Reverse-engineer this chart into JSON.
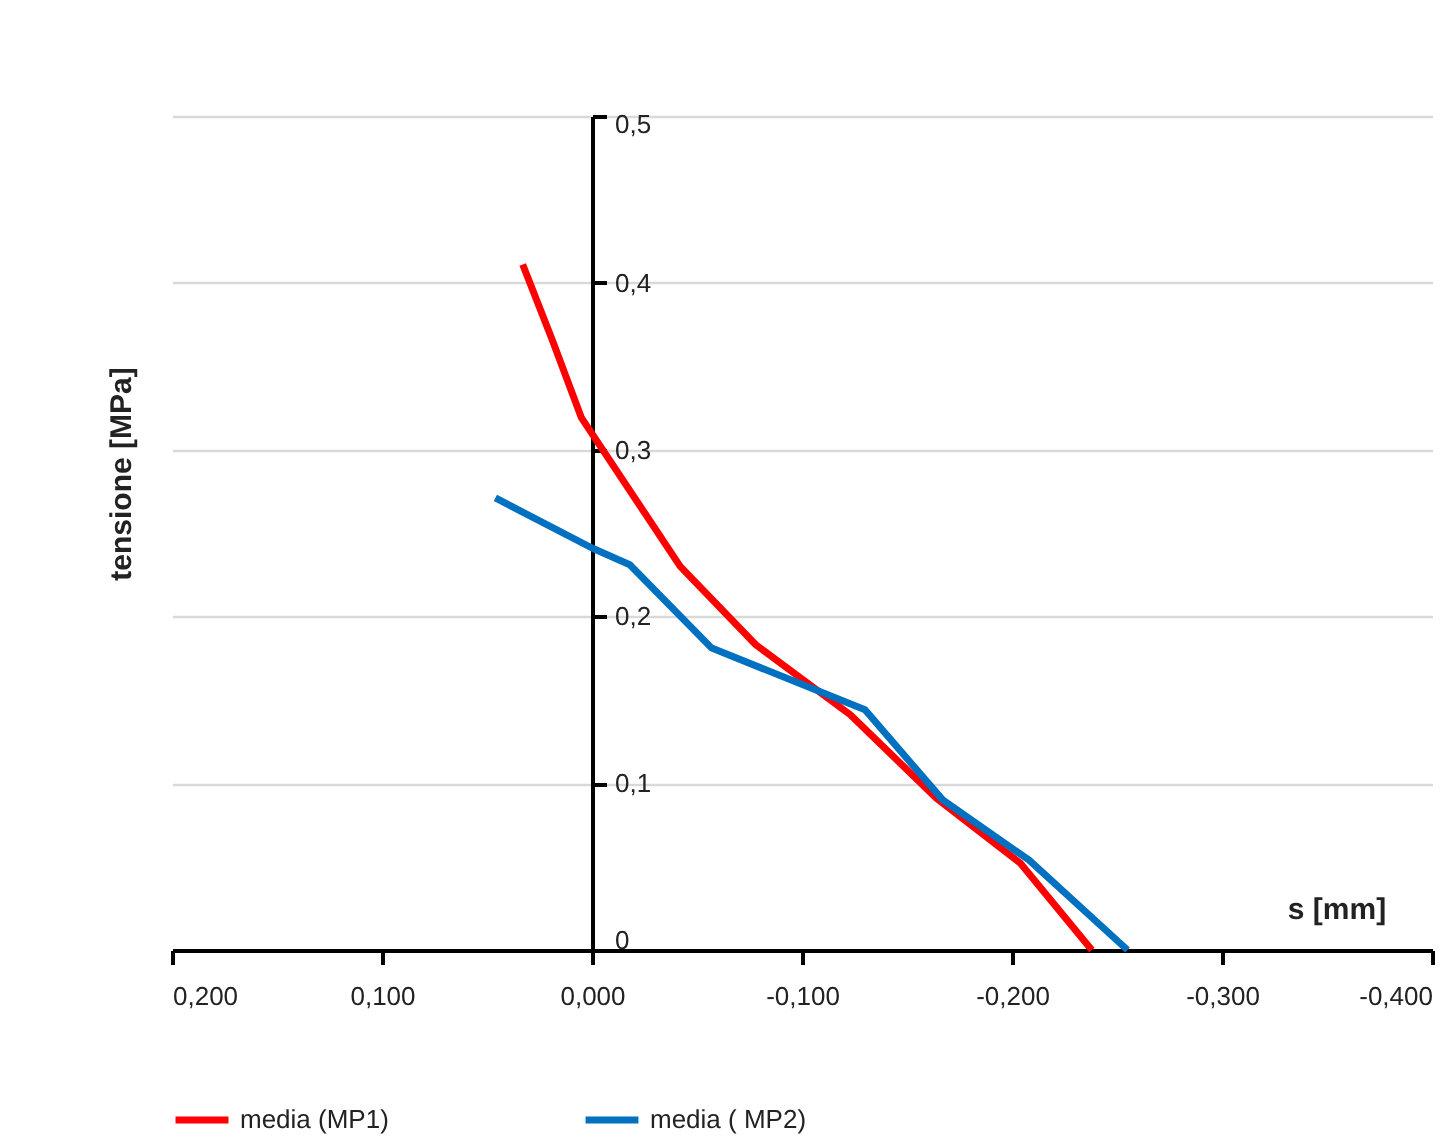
{
  "chart_data": {
    "type": "line",
    "xlabel": "s [mm]",
    "ylabel": "tensione [MPa]",
    "xlim": [
      0.2,
      -0.4
    ],
    "ylim": [
      0,
      0.5
    ],
    "xticks": [
      {
        "value": 0.2,
        "label": "0,200"
      },
      {
        "value": 0.1,
        "label": "0,100"
      },
      {
        "value": 0,
        "label": "0,000"
      },
      {
        "value": -0.1,
        "label": "-0,100"
      },
      {
        "value": -0.2,
        "label": "-0,200"
      },
      {
        "value": -0.3,
        "label": "-0,300"
      },
      {
        "value": -0.4,
        "label": "-0,400"
      }
    ],
    "yticks": [
      {
        "value": 0,
        "label": "0"
      },
      {
        "value": 0.1,
        "label": "0,1"
      },
      {
        "value": 0.2,
        "label": "0,2"
      },
      {
        "value": 0.3,
        "label": "0,3"
      },
      {
        "value": 0.4,
        "label": "0,4"
      },
      {
        "value": 0.5,
        "label": "0,5"
      }
    ],
    "grid": "y",
    "legend": "bottom",
    "line_style": "solid",
    "series": [
      {
        "name": "media (MP1)",
        "color": "#ff0000",
        "x": [
          0.033,
          0.019,
          0.005,
          -0.042,
          -0.078,
          -0.123,
          -0.164,
          -0.204,
          -0.238
        ],
        "values": [
          0.411,
          0.366,
          0.319,
          0.23,
          0.183,
          0.141,
          0.091,
          0.052,
          0
        ]
      },
      {
        "name": "media ( MP2)",
        "color": "#0070c0",
        "x": [
          0.046,
          0,
          -0.018,
          -0.057,
          -0.13,
          -0.167,
          -0.208,
          -0.255
        ],
        "values": [
          0.271,
          0.241,
          0.231,
          0.181,
          0.144,
          0.09,
          0.054,
          0
        ]
      }
    ]
  }
}
